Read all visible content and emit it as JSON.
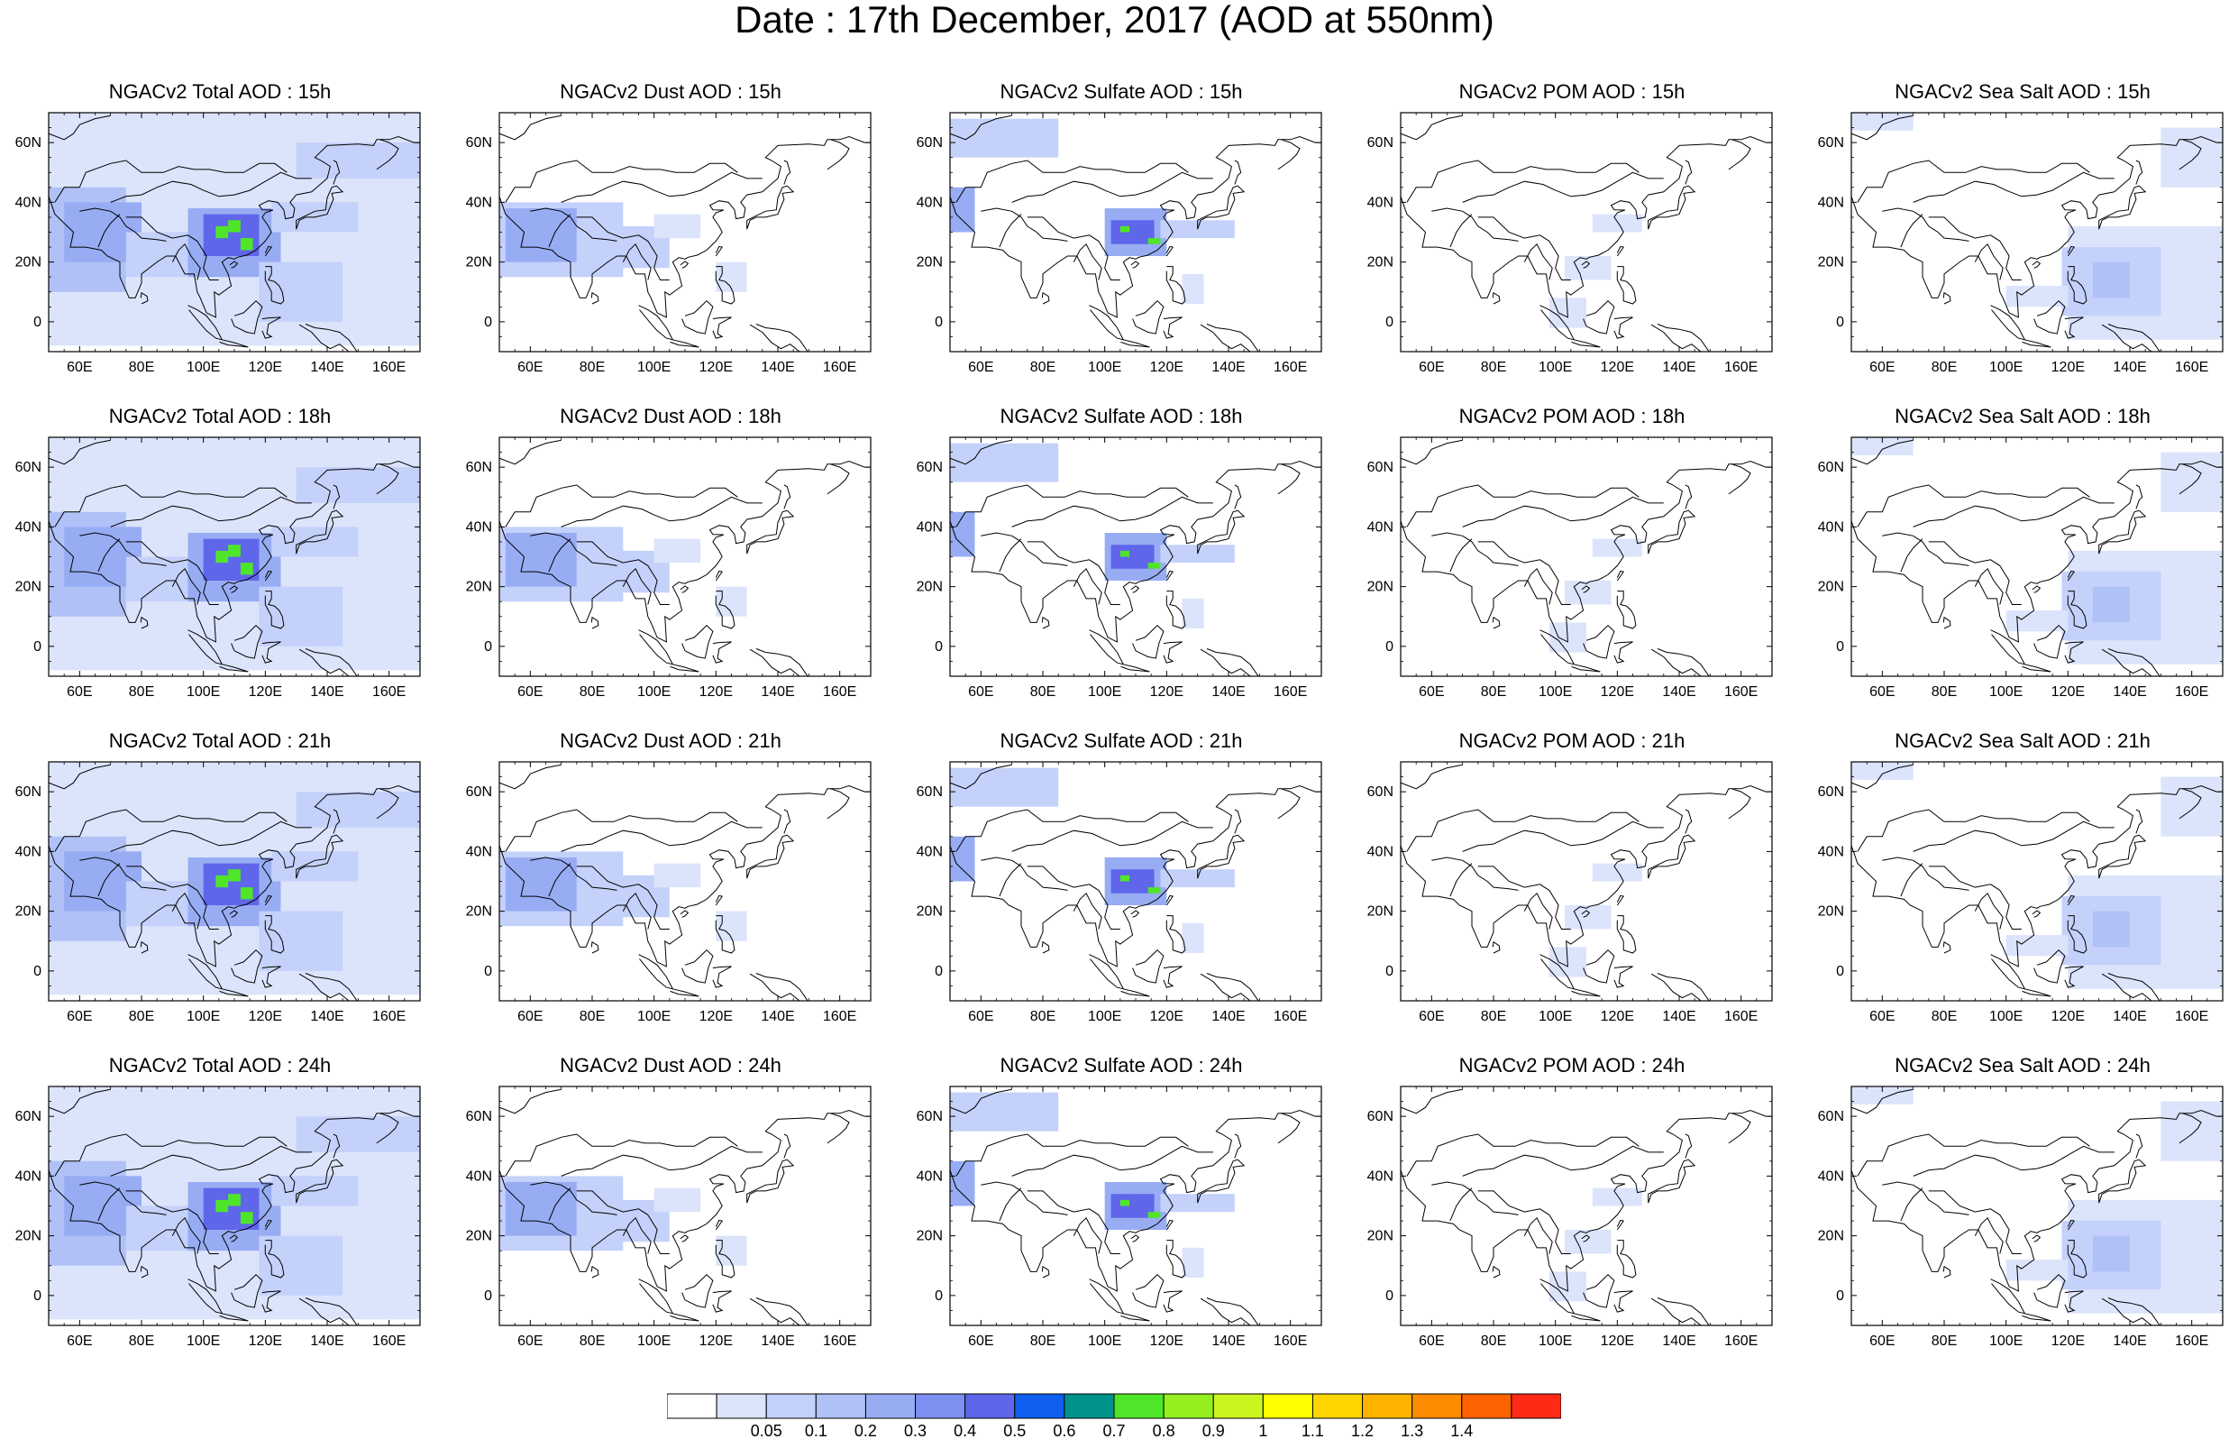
{
  "title": "Date : 17th December, 2017 (AOD at 550nm)",
  "axes": {
    "x_ticks": [
      "60E",
      "80E",
      "100E",
      "120E",
      "140E",
      "160E"
    ],
    "y_ticks": [
      "60N",
      "40N",
      "20N",
      "0"
    ]
  },
  "panels": [
    [
      {
        "title": "NGACv2 Total AOD : 15h",
        "species": "total"
      },
      {
        "title": "NGACv2 Dust AOD : 15h",
        "species": "dust"
      },
      {
        "title": "NGACv2 Sulfate AOD : 15h",
        "species": "sulfate"
      },
      {
        "title": "NGACv2 POM AOD : 15h",
        "species": "pom"
      },
      {
        "title": "NGACv2 Sea Salt AOD : 15h",
        "species": "seasalt"
      }
    ],
    [
      {
        "title": "NGACv2 Total AOD : 18h",
        "species": "total"
      },
      {
        "title": "NGACv2 Dust AOD : 18h",
        "species": "dust"
      },
      {
        "title": "NGACv2 Sulfate AOD : 18h",
        "species": "sulfate"
      },
      {
        "title": "NGACv2 POM AOD : 18h",
        "species": "pom"
      },
      {
        "title": "NGACv2 Sea Salt AOD : 18h",
        "species": "seasalt"
      }
    ],
    [
      {
        "title": "NGACv2 Total AOD : 21h",
        "species": "total"
      },
      {
        "title": "NGACv2 Dust AOD : 21h",
        "species": "dust"
      },
      {
        "title": "NGACv2 Sulfate AOD : 21h",
        "species": "sulfate"
      },
      {
        "title": "NGACv2 POM AOD : 21h",
        "species": "pom"
      },
      {
        "title": "NGACv2 Sea Salt AOD : 21h",
        "species": "seasalt"
      }
    ],
    [
      {
        "title": "NGACv2 Total AOD : 24h",
        "species": "total"
      },
      {
        "title": "NGACv2 Dust AOD : 24h",
        "species": "dust"
      },
      {
        "title": "NGACv2 Sulfate AOD : 24h",
        "species": "sulfate"
      },
      {
        "title": "NGACv2 POM AOD : 24h",
        "species": "pom"
      },
      {
        "title": "NGACv2 Sea Salt  AOD : 24h",
        "species": "seasalt"
      }
    ]
  ],
  "colorbar": {
    "labels": [
      "0.05",
      "0.1",
      "0.2",
      "0.3",
      "0.4",
      "0.5",
      "0.6",
      "0.7",
      "0.8",
      "0.9",
      "1",
      "1.1",
      "1.2",
      "1.3",
      "1.4"
    ],
    "colors": [
      "#ffffff",
      "#dbe4fb",
      "#c4d1fa",
      "#b0c1f7",
      "#98acf4",
      "#7d8ff0",
      "#5f66ea",
      "#0f5ff0",
      "#00938c",
      "#4fe629",
      "#95ef1f",
      "#cbf51f",
      "#ffff00",
      "#ffd500",
      "#ffb300",
      "#ff8c00",
      "#ff6200",
      "#ff2a16"
    ]
  }
}
